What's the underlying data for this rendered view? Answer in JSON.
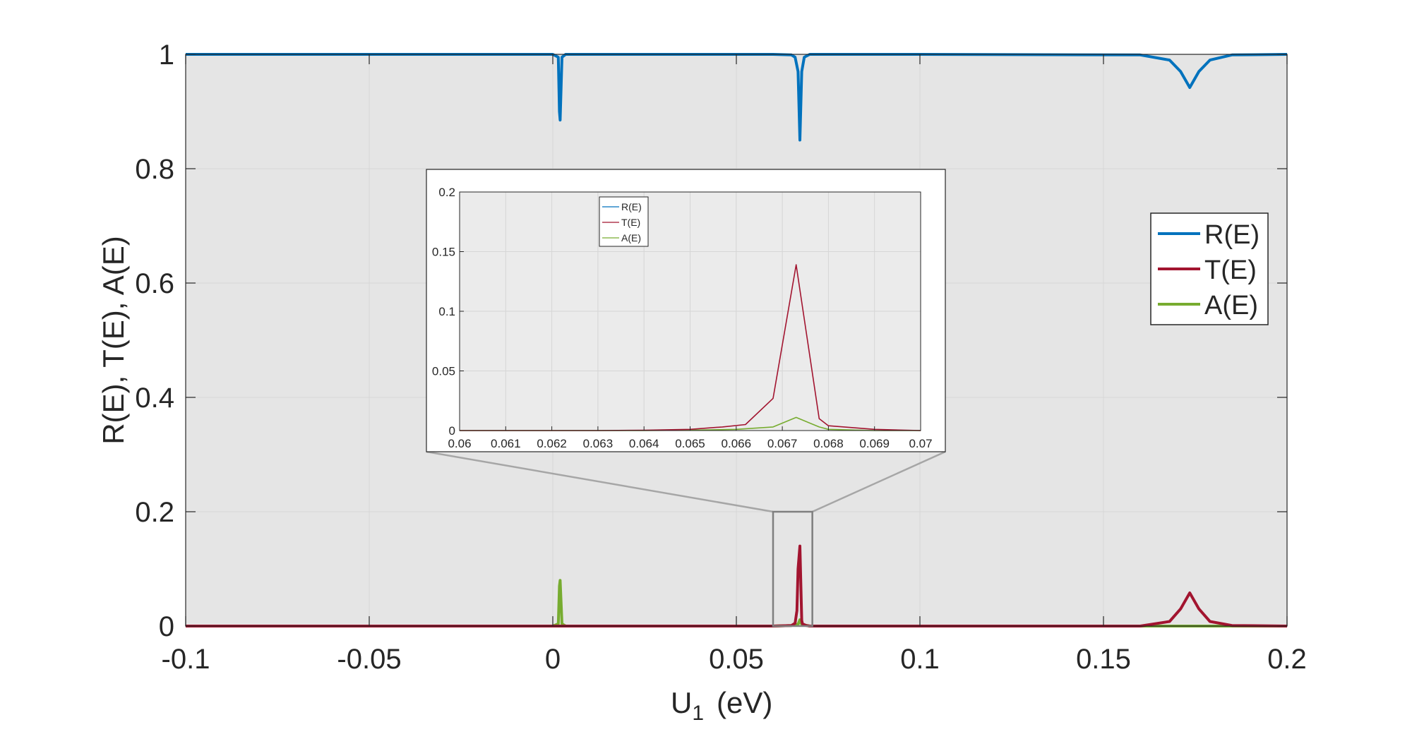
{
  "colors": {
    "plot_bg": "#e5e5e5",
    "inset_bg": "#ebebeb",
    "axis": "#262626",
    "grid": "#d6d6d6",
    "zoom_box": "#7f7f7f",
    "zoom_lines": "#a6a6a6"
  },
  "chart_data": [
    {
      "type": "line",
      "title": "",
      "xlabel": "U",
      "xlabel_subscript": "1",
      "xlabel_unit": "(eV)",
      "ylabel": "R(E), T(E), A(E)",
      "xlim": [
        -0.1,
        0.2
      ],
      "ylim": [
        0,
        1
      ],
      "xticks": [
        -0.1,
        -0.05,
        0,
        0.05,
        0.1,
        0.15,
        0.2
      ],
      "xtick_labels": [
        "-0.1",
        "-0.05",
        "0",
        "0.05",
        "0.1",
        "0.15",
        "0.2"
      ],
      "yticks": [
        0,
        0.2,
        0.4,
        0.6,
        0.8,
        1
      ],
      "ytick_labels": [
        "0",
        "0.2",
        "0.4",
        "0.6",
        "0.8",
        "1"
      ],
      "grid": true,
      "legend_position": "right",
      "series": [
        {
          "name": "R(E)",
          "color": "#0072bd",
          "x": [
            -0.1,
            0.0,
            0.0015,
            0.0018,
            0.002,
            0.0025,
            0.0035,
            0.06,
            0.065,
            0.066,
            0.0668,
            0.0673,
            0.0678,
            0.0685,
            0.07,
            0.1,
            0.16,
            0.168,
            0.171,
            0.1735,
            0.176,
            0.179,
            0.185,
            0.2
          ],
          "y": [
            1.0,
            1.0,
            0.995,
            0.9,
            0.885,
            0.995,
            1.0,
            1.0,
            0.999,
            0.995,
            0.97,
            0.85,
            0.97,
            0.995,
            1.0,
            1.0,
            0.999,
            0.99,
            0.97,
            0.942,
            0.97,
            0.99,
            0.999,
            1.0
          ]
        },
        {
          "name": "T(E)",
          "color": "#a2142f",
          "x": [
            -0.1,
            0.06,
            0.065,
            0.066,
            0.0665,
            0.0668,
            0.0673,
            0.0678,
            0.068,
            0.069,
            0.07,
            0.16,
            0.168,
            0.171,
            0.1735,
            0.176,
            0.179,
            0.185,
            0.2
          ],
          "y": [
            0.0,
            0.0,
            0.001,
            0.005,
            0.027,
            0.1,
            0.14,
            0.01,
            0.004,
            0.001,
            0.0,
            0.0,
            0.008,
            0.03,
            0.058,
            0.03,
            0.008,
            0.001,
            0.0
          ],
          "inset_x": [
            0.06,
            0.061,
            0.062,
            0.063,
            0.064,
            0.065,
            0.0657,
            0.0662,
            0.0668,
            0.0673,
            0.0678,
            0.068,
            0.069,
            0.07
          ],
          "inset_y": [
            0.0,
            0.0,
            0.0,
            0.0,
            0.0003,
            0.001,
            0.003,
            0.005,
            0.027,
            0.139,
            0.01,
            0.004,
            0.001,
            0.0
          ]
        },
        {
          "name": "A(E)",
          "color": "#77ac30",
          "x": [
            -0.1,
            0.0,
            0.0015,
            0.0018,
            0.002,
            0.0025,
            0.0035,
            0.06,
            0.065,
            0.0668,
            0.0673,
            0.0678,
            0.07,
            0.2
          ],
          "y": [
            0.0,
            0.0,
            0.004,
            0.07,
            0.08,
            0.004,
            0.0,
            0.0,
            0.001,
            0.003,
            0.011,
            0.003,
            0.0,
            0.0
          ],
          "inset_x": [
            0.06,
            0.061,
            0.062,
            0.063,
            0.064,
            0.065,
            0.066,
            0.0668,
            0.0673,
            0.0678,
            0.068,
            0.069,
            0.07
          ],
          "inset_y": [
            0.0,
            0.0,
            0.0,
            0.0,
            0.0,
            0.0003,
            0.001,
            0.003,
            0.011,
            0.003,
            0.001,
            0.0,
            0.0
          ]
        }
      ]
    },
    {
      "type": "line",
      "title": "",
      "xlabel": "",
      "ylabel": "",
      "xlim": [
        0.06,
        0.07
      ],
      "ylim": [
        0,
        0.2
      ],
      "xticks": [
        0.06,
        0.061,
        0.062,
        0.063,
        0.064,
        0.065,
        0.066,
        0.067,
        0.068,
        0.069,
        0.07
      ],
      "xtick_labels": [
        "0.06",
        "0.061",
        "0.062",
        "0.063",
        "0.064",
        "0.065",
        "0.066",
        "0.067",
        "0.068",
        "0.069",
        "0.07"
      ],
      "yticks": [
        0,
        0.05,
        0.1,
        0.15,
        0.2
      ],
      "ytick_labels": [
        "0",
        "0.05",
        "0.1",
        "0.15",
        "0.2"
      ],
      "grid": true,
      "legend_position": "top-left",
      "legend": [
        "R(E)",
        "T(E)",
        "A(E)"
      ],
      "zoom_region": {
        "xlim": [
          0.06,
          0.0707
        ],
        "ylim": [
          0,
          0.2
        ]
      }
    }
  ]
}
